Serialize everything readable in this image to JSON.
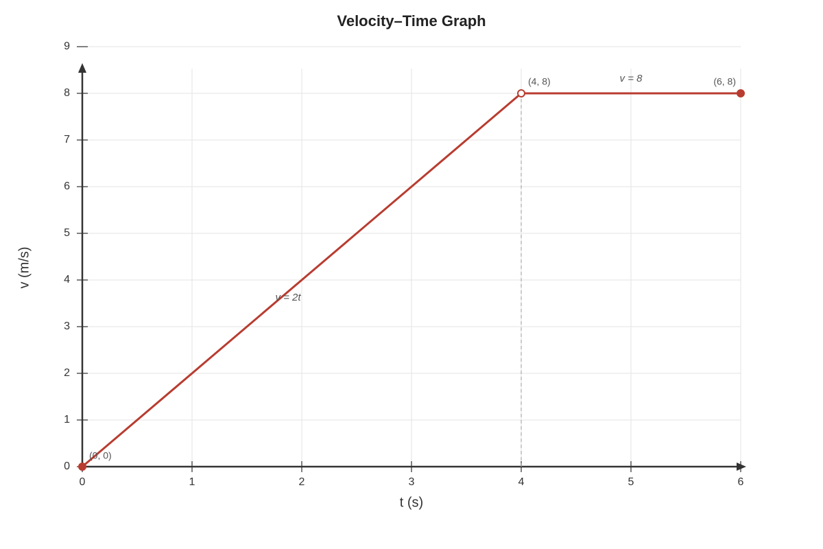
{
  "chart_data": {
    "type": "line",
    "title": "Velocity–Time Graph",
    "x_label": "t (s)",
    "y_label": "v (m/s)",
    "x": [
      0,
      4,
      6
    ],
    "series": [
      {
        "name": "v",
        "color": "#b83c30",
        "values": [
          0,
          8,
          8
        ],
        "markers": [
          "filled",
          "open",
          "filled"
        ],
        "point_labels": [
          "(0, 0)",
          "(4, 8)",
          "(6, 8)"
        ],
        "segment_labels": [
          "v = 2t",
          "v = 8"
        ]
      }
    ],
    "vline": 4,
    "xlim": [
      0,
      6
    ],
    "xticks": [
      0,
      1,
      2,
      3,
      4,
      5,
      6
    ],
    "ylim": [
      0,
      9
    ],
    "yticks": [
      0,
      1,
      2,
      3,
      4,
      5,
      6,
      7,
      8,
      9
    ],
    "grid": true
  }
}
